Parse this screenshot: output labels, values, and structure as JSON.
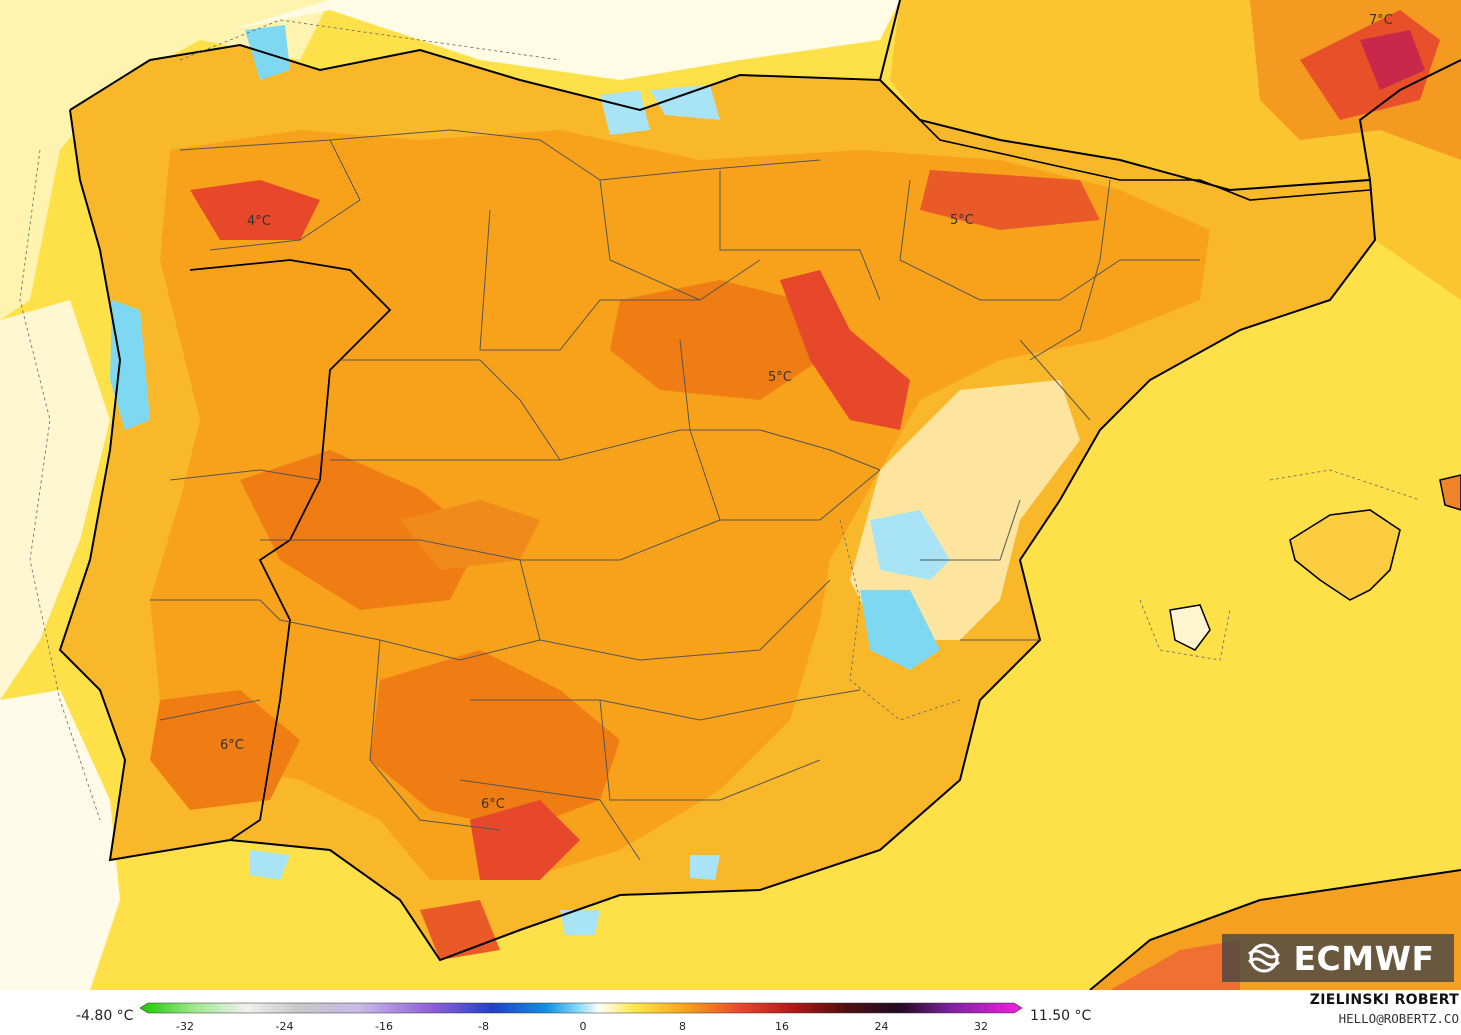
{
  "map": {
    "labels": [
      {
        "text": "4°C"
      },
      {
        "text": "5°C"
      },
      {
        "text": "5°C"
      },
      {
        "text": "6°C"
      },
      {
        "text": "6°C"
      },
      {
        "text": "7°C"
      }
    ],
    "colors": {
      "sea_base": "#fee048",
      "cold_blue": "#7fd8f2",
      "light_blue": "#d4f1fa",
      "inland_orange": "#f7a21a",
      "dark_orange": "#ef7d14",
      "red_hot": "#e8482a",
      "coast_line": "#000000",
      "province_line": "#555555"
    }
  },
  "legend": {
    "min_label": "-4.80 °C",
    "max_label": "11.50 °C",
    "ticks": [
      "-32",
      "-24",
      "-16",
      "-8",
      "0",
      "8",
      "16",
      "24",
      "32"
    ]
  },
  "credits": {
    "author": "ZIELINSKI ROBERT",
    "email": "HELLO@ROBERTZ.CO",
    "logo": "ECMWF",
    "logo_icon": "ecmwf-logo-icon"
  }
}
